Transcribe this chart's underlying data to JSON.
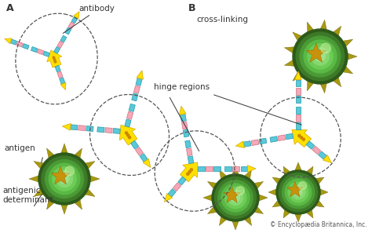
{
  "background_color": "#ffffff",
  "label_A": "A",
  "label_B": "B",
  "label_antibody": "antibody",
  "label_antigen": "antigen",
  "label_antigenic": "antigenic\ndeterminant",
  "label_hinge": "hinge regions",
  "label_crosslink": "cross-linking",
  "label_copyright": "© Encyclopædia Britannica, Inc.",
  "color_cyan": "#5BC8D8",
  "color_cyan_edge": "#2299AA",
  "color_pink": "#F4A8B8",
  "color_pink_edge": "#D07080",
  "color_yellow": "#FFE000",
  "color_yellow_edge": "#D4A800",
  "color_spike": "#A89A10",
  "color_text": "#333333"
}
